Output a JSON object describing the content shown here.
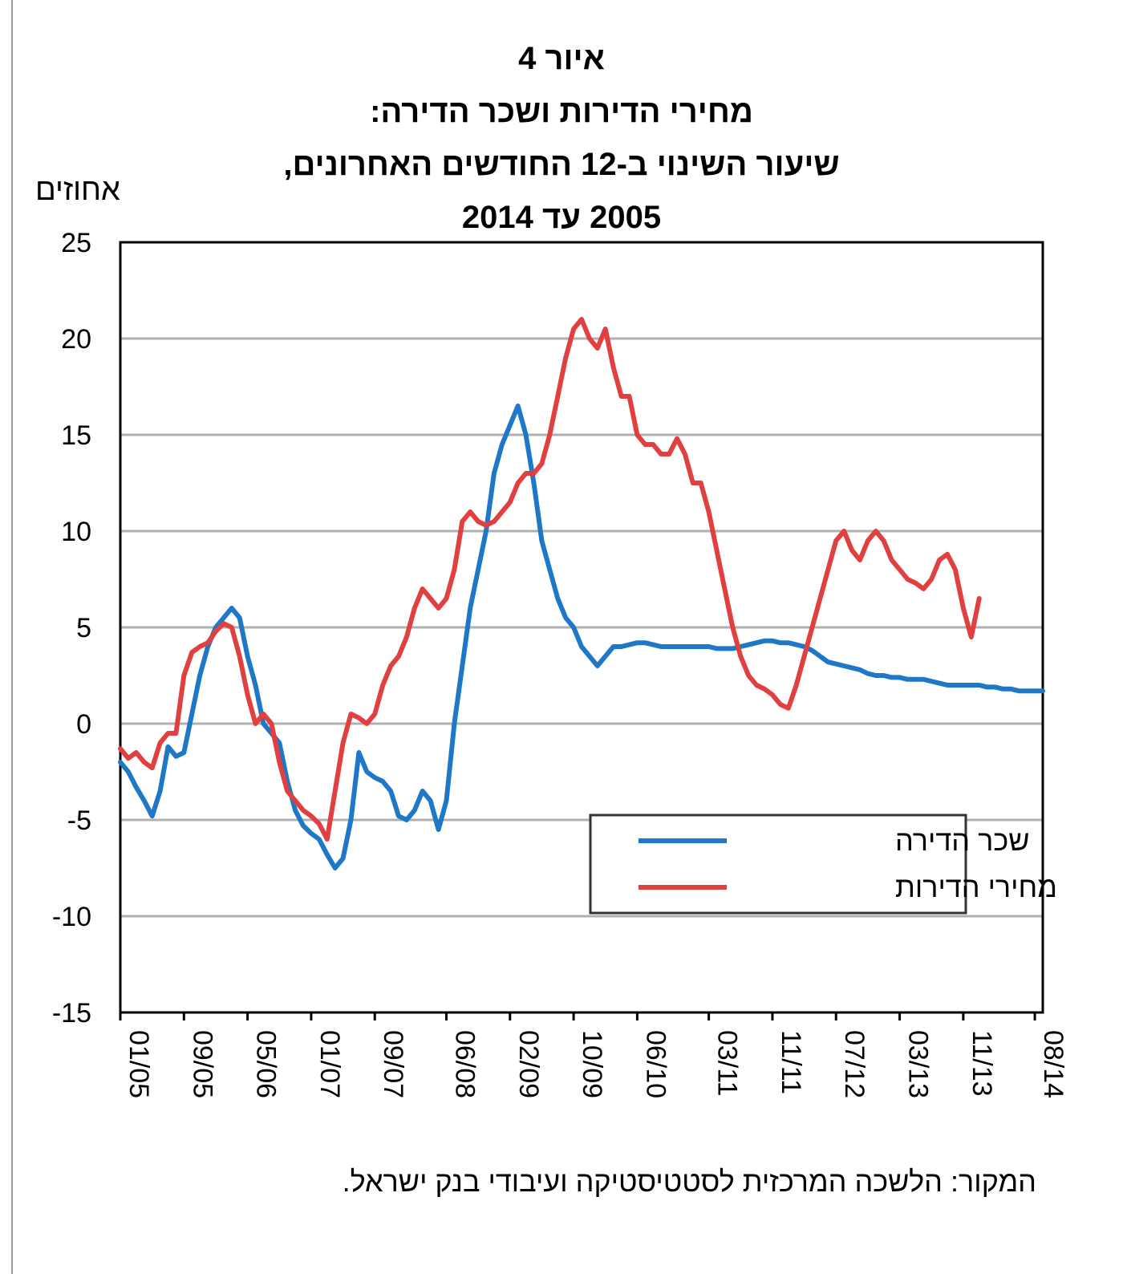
{
  "titles": {
    "line1": "איור 4",
    "line2": "מחירי הדירות ושכר הדירה:",
    "line3": "שיעור השינוי ב-12 החודשים האחרונים,",
    "line4": "2005 עד 2014"
  },
  "source_note": "המקור: הלשכה המרכזית לסטטיסטיקה ועיבודי בנק ישראל.",
  "colors": {
    "rent": "#1f77c8",
    "prices": "#e04040",
    "grid": "#b0b0b0",
    "axis": "#000000"
  },
  "chart_data": {
    "type": "line",
    "title": "מחירי הדירות ושכר הדירה: שיעור השינוי ב-12 החודשים האחרונים, 2005 עד 2014",
    "ylabel": "אחוזים",
    "xlabel": "",
    "ylim": [
      -15,
      25
    ],
    "yticks": [
      25,
      20,
      15,
      10,
      5,
      0,
      -5,
      -10,
      -15
    ],
    "xlim": [
      0,
      116
    ],
    "xticks": [
      {
        "label": "01/05",
        "x": 0
      },
      {
        "label": "09/05",
        "x": 8
      },
      {
        "label": "05/06",
        "x": 16
      },
      {
        "label": "01/07",
        "x": 24
      },
      {
        "label": "09/07",
        "x": 32
      },
      {
        "label": "06/08",
        "x": 41
      },
      {
        "label": "02/09",
        "x": 49
      },
      {
        "label": "10/09",
        "x": 57
      },
      {
        "label": "06/10",
        "x": 65
      },
      {
        "label": "03/11",
        "x": 74
      },
      {
        "label": "11/11",
        "x": 82
      },
      {
        "label": "07/12",
        "x": 90
      },
      {
        "label": "03/13",
        "x": 98
      },
      {
        "label": "11/13",
        "x": 106
      },
      {
        "label": "08/14",
        "x": 115
      }
    ],
    "grid": "horizontal",
    "legend_position": "lower-right",
    "series": [
      {
        "name": "שכר הדירה",
        "color_key": "rent",
        "points": [
          [
            0,
            -2
          ],
          [
            1,
            -2.5
          ],
          [
            2,
            -3.3
          ],
          [
            3,
            -4
          ],
          [
            4,
            -4.8
          ],
          [
            5,
            -3.5
          ],
          [
            6,
            -1.2
          ],
          [
            7,
            -1.7
          ],
          [
            8,
            -1.5
          ],
          [
            9,
            0.5
          ],
          [
            10,
            2.5
          ],
          [
            11,
            4
          ],
          [
            12,
            5
          ],
          [
            13,
            5.5
          ],
          [
            14,
            6
          ],
          [
            15,
            5.5
          ],
          [
            16,
            3.5
          ],
          [
            17,
            2
          ],
          [
            18,
            0
          ],
          [
            19,
            -0.5
          ],
          [
            20,
            -1
          ],
          [
            21,
            -3
          ],
          [
            22,
            -4.5
          ],
          [
            23,
            -5.3
          ],
          [
            24,
            -5.7
          ],
          [
            25,
            -6
          ],
          [
            26,
            -6.8
          ],
          [
            27,
            -7.5
          ],
          [
            28,
            -7
          ],
          [
            29,
            -5
          ],
          [
            30,
            -1.5
          ],
          [
            31,
            -2.5
          ],
          [
            32,
            -2.8
          ],
          [
            33,
            -3
          ],
          [
            34,
            -3.5
          ],
          [
            35,
            -4.8
          ],
          [
            36,
            -5
          ],
          [
            37,
            -4.5
          ],
          [
            38,
            -3.5
          ],
          [
            39,
            -4
          ],
          [
            40,
            -5.5
          ],
          [
            41,
            -4
          ],
          [
            42,
            0
          ],
          [
            43,
            3
          ],
          [
            44,
            6
          ],
          [
            45,
            8
          ],
          [
            46,
            10
          ],
          [
            47,
            13
          ],
          [
            48,
            14.5
          ],
          [
            49,
            15.5
          ],
          [
            50,
            16.5
          ],
          [
            51,
            15
          ],
          [
            52,
            12.5
          ],
          [
            53,
            9.5
          ],
          [
            54,
            8
          ],
          [
            55,
            6.5
          ],
          [
            56,
            5.5
          ],
          [
            57,
            5
          ],
          [
            58,
            4
          ],
          [
            59,
            3.5
          ],
          [
            60,
            3
          ],
          [
            61,
            3.5
          ],
          [
            62,
            4
          ],
          [
            63,
            4
          ],
          [
            64,
            4.1
          ],
          [
            65,
            4.2
          ],
          [
            66,
            4.2
          ],
          [
            67,
            4.1
          ],
          [
            68,
            4
          ],
          [
            69,
            4
          ],
          [
            70,
            4
          ],
          [
            71,
            4
          ],
          [
            72,
            4
          ],
          [
            73,
            4
          ],
          [
            74,
            4
          ],
          [
            75,
            3.9
          ],
          [
            76,
            3.9
          ],
          [
            77,
            3.9
          ],
          [
            78,
            4
          ],
          [
            79,
            4.1
          ],
          [
            80,
            4.2
          ],
          [
            81,
            4.3
          ],
          [
            82,
            4.3
          ],
          [
            83,
            4.2
          ],
          [
            84,
            4.2
          ],
          [
            85,
            4.1
          ],
          [
            86,
            4
          ],
          [
            87,
            3.8
          ],
          [
            88,
            3.5
          ],
          [
            89,
            3.2
          ],
          [
            90,
            3.1
          ],
          [
            91,
            3
          ],
          [
            92,
            2.9
          ],
          [
            93,
            2.8
          ],
          [
            94,
            2.6
          ],
          [
            95,
            2.5
          ],
          [
            96,
            2.5
          ],
          [
            97,
            2.4
          ],
          [
            98,
            2.4
          ],
          [
            99,
            2.3
          ],
          [
            100,
            2.3
          ],
          [
            101,
            2.3
          ],
          [
            102,
            2.2
          ],
          [
            103,
            2.1
          ],
          [
            104,
            2
          ],
          [
            105,
            2
          ],
          [
            106,
            2
          ],
          [
            107,
            2
          ],
          [
            108,
            2
          ],
          [
            109,
            1.9
          ],
          [
            110,
            1.9
          ],
          [
            111,
            1.8
          ],
          [
            112,
            1.8
          ],
          [
            113,
            1.7
          ],
          [
            114,
            1.7
          ],
          [
            115,
            1.7
          ],
          [
            116,
            1.7
          ]
        ]
      },
      {
        "name": "מחירי הדירות",
        "color_key": "prices",
        "points": [
          [
            0,
            -1.3
          ],
          [
            1,
            -1.8
          ],
          [
            2,
            -1.5
          ],
          [
            3,
            -2
          ],
          [
            4,
            -2.3
          ],
          [
            5,
            -1
          ],
          [
            6,
            -0.5
          ],
          [
            7,
            -0.5
          ],
          [
            8,
            2.5
          ],
          [
            9,
            3.7
          ],
          [
            10,
            4
          ],
          [
            11,
            4.2
          ],
          [
            12,
            4.8
          ],
          [
            13,
            5.2
          ],
          [
            14,
            5
          ],
          [
            15,
            3.5
          ],
          [
            16,
            1.5
          ],
          [
            17,
            0
          ],
          [
            18,
            0.5
          ],
          [
            19,
            0
          ],
          [
            20,
            -2
          ],
          [
            21,
            -3.5
          ],
          [
            22,
            -4
          ],
          [
            23,
            -4.5
          ],
          [
            24,
            -4.8
          ],
          [
            25,
            -5.2
          ],
          [
            26,
            -6
          ],
          [
            27,
            -3.5
          ],
          [
            28,
            -1
          ],
          [
            29,
            0.5
          ],
          [
            30,
            0.3
          ],
          [
            31,
            0
          ],
          [
            32,
            0.5
          ],
          [
            33,
            2
          ],
          [
            34,
            3
          ],
          [
            35,
            3.5
          ],
          [
            36,
            4.5
          ],
          [
            37,
            6
          ],
          [
            38,
            7
          ],
          [
            39,
            6.5
          ],
          [
            40,
            6
          ],
          [
            41,
            6.5
          ],
          [
            42,
            8
          ],
          [
            43,
            10.5
          ],
          [
            44,
            11
          ],
          [
            45,
            10.5
          ],
          [
            46,
            10.3
          ],
          [
            47,
            10.5
          ],
          [
            48,
            11
          ],
          [
            49,
            11.5
          ],
          [
            50,
            12.5
          ],
          [
            51,
            13
          ],
          [
            52,
            13
          ],
          [
            53,
            13.5
          ],
          [
            54,
            15
          ],
          [
            55,
            17
          ],
          [
            56,
            19
          ],
          [
            57,
            20.5
          ],
          [
            58,
            21
          ],
          [
            59,
            20
          ],
          [
            60,
            19.5
          ],
          [
            61,
            20.5
          ],
          [
            62,
            18.5
          ],
          [
            63,
            17
          ],
          [
            64,
            17
          ],
          [
            65,
            15
          ],
          [
            66,
            14.5
          ],
          [
            67,
            14.5
          ],
          [
            68,
            14
          ],
          [
            69,
            14
          ],
          [
            70,
            14.8
          ],
          [
            71,
            14
          ],
          [
            72,
            12.5
          ],
          [
            73,
            12.5
          ],
          [
            74,
            11
          ],
          [
            75,
            9
          ],
          [
            76,
            7
          ],
          [
            77,
            5
          ],
          [
            78,
            3.5
          ],
          [
            79,
            2.5
          ],
          [
            80,
            2
          ],
          [
            81,
            1.8
          ],
          [
            82,
            1.5
          ],
          [
            83,
            1
          ],
          [
            84,
            0.8
          ],
          [
            85,
            2
          ],
          [
            86,
            3.5
          ],
          [
            87,
            5
          ],
          [
            88,
            6.5
          ],
          [
            89,
            8
          ],
          [
            90,
            9.5
          ],
          [
            91,
            10
          ],
          [
            92,
            9
          ],
          [
            93,
            8.5
          ],
          [
            94,
            9.5
          ],
          [
            95,
            10
          ],
          [
            96,
            9.5
          ],
          [
            97,
            8.5
          ],
          [
            98,
            8
          ],
          [
            99,
            7.5
          ],
          [
            100,
            7.3
          ],
          [
            101,
            7
          ],
          [
            102,
            7.5
          ],
          [
            103,
            8.5
          ],
          [
            104,
            8.8
          ],
          [
            105,
            8
          ],
          [
            106,
            6
          ],
          [
            107,
            4.5
          ],
          [
            108,
            6.5
          ]
        ]
      }
    ]
  }
}
